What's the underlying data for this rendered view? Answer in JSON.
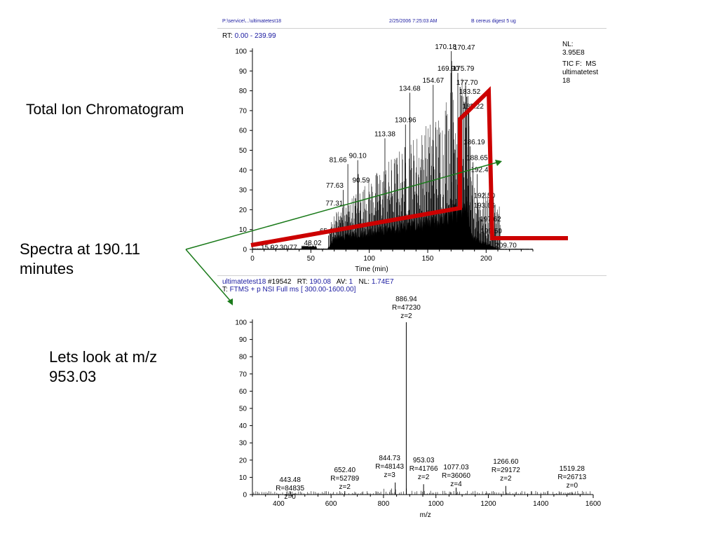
{
  "slide": {
    "label_tic": "Total Ion Chromatogram",
    "label_spectra": "Spectra at 190.11\nminutes",
    "label_lookat": "Lets look at m/z\n953.03"
  },
  "tic_header": {
    "file": "P:\\service\\...\\ultimatetest18",
    "datetime": "2/25/2006 7:25:03 AM",
    "sample": "B cereus digest 5 ug",
    "rt_label": "RT:",
    "rt_range": "0.00 - 239.99",
    "nl_label": "NL:",
    "nl_value": "3.95E8",
    "tic_filter_label": "TIC F:",
    "tic_filter_value": "MS",
    "tic_file_line1": "ultimatetest",
    "tic_file_line2": "18"
  },
  "spec_header": {
    "file": "ultimatetest18",
    "scan": "#19542",
    "rt_label": "RT:",
    "rt_value": "190.08",
    "av_label": "AV:",
    "av_value": "1",
    "nl_label": "NL:",
    "nl_value": "1.74E7",
    "filter_label": "T:",
    "filter_value": "FTMS + p NSI Full ms [ 300.00-1600.00]"
  },
  "colors": {
    "header_blue": "#1a1aa0",
    "red_annotation": "#cc0000",
    "green_arrow": "#1a7a1a",
    "trace": "#000000"
  },
  "chart_data": [
    {
      "type": "area",
      "title": "",
      "xlabel": "Time (min)",
      "ylabel": "",
      "xlim": [
        0,
        240
      ],
      "ylim": [
        0,
        100
      ],
      "xticks": [
        0,
        50,
        100,
        150,
        200
      ],
      "yticks": [
        0,
        10,
        20,
        30,
        40,
        50,
        60,
        70,
        80,
        90,
        100
      ],
      "grid": false,
      "peak_labels": [
        {
          "x": 15.92,
          "y": 2,
          "label": "15.92"
        },
        {
          "x": 30.77,
          "y": 2,
          "label": "30.77"
        },
        {
          "x": 48.02,
          "y": 3.5,
          "label": "48.02"
        },
        {
          "x": 65.04,
          "y": 7,
          "label": "65.04"
        },
        {
          "x": 77.31,
          "y": 21,
          "label": "77.31"
        },
        {
          "x": 77.63,
          "y": 30,
          "label": "77.63"
        },
        {
          "x": 81.66,
          "y": 43,
          "label": "81.66"
        },
        {
          "x": 90.1,
          "y": 45,
          "label": "90.10"
        },
        {
          "x": 90.59,
          "y": 38,
          "label": "90.59"
        },
        {
          "x": 113.38,
          "y": 56,
          "label": "113.38"
        },
        {
          "x": 130.96,
          "y": 63,
          "label": "130.96"
        },
        {
          "x": 134.68,
          "y": 79,
          "label": "134.68"
        },
        {
          "x": 154.67,
          "y": 83,
          "label": "154.67"
        },
        {
          "x": 169.9,
          "y": 89,
          "label": "169.90"
        },
        {
          "x": 170.18,
          "y": 100,
          "label": "170.18"
        },
        {
          "x": 170.47,
          "y": 95,
          "label": "170.47"
        },
        {
          "x": 175.79,
          "y": 89,
          "label": "175.79"
        },
        {
          "x": 177.7,
          "y": 82,
          "label": "177.70"
        },
        {
          "x": 183.52,
          "y": 77,
          "label": "183.52"
        },
        {
          "x": 185.22,
          "y": 70,
          "label": "185.22"
        },
        {
          "x": 186.19,
          "y": 52,
          "label": "186.19"
        },
        {
          "x": 188.65,
          "y": 44,
          "label": "188.65"
        },
        {
          "x": 192.41,
          "y": 38,
          "label": "192.41"
        },
        {
          "x": 192.5,
          "y": 25,
          "label": "192.50"
        },
        {
          "x": 193.66,
          "y": 20,
          "label": "193.66"
        },
        {
          "x": 197.62,
          "y": 13,
          "label": "197.62"
        },
        {
          "x": 199.5,
          "y": 7,
          "label": "199.50"
        },
        {
          "x": 209.7,
          "y": 3,
          "label": "209.70"
        }
      ]
    },
    {
      "type": "bar",
      "title": "",
      "xlabel": "m/z",
      "ylabel": "",
      "xlim": [
        300,
        1600
      ],
      "ylim": [
        0,
        100
      ],
      "xticks": [
        400,
        600,
        800,
        1000,
        1200,
        1400,
        1600
      ],
      "yticks": [
        0,
        10,
        20,
        30,
        40,
        50,
        60,
        70,
        80,
        90,
        100
      ],
      "grid": false,
      "peaks": [
        {
          "mz": 443.48,
          "intensity": 2,
          "label": "443.48",
          "r": "R=84835",
          "z": "z=0"
        },
        {
          "mz": 652.4,
          "intensity": 2,
          "label": "652.40",
          "r": "R=52789",
          "z": "z=2"
        },
        {
          "mz": 844.73,
          "intensity": 7,
          "label": "844.73",
          "r": "R=48143",
          "z": "z=3"
        },
        {
          "mz": 886.94,
          "intensity": 100,
          "label": "886.94",
          "r": "R=47230",
          "z": "z=2"
        },
        {
          "mz": 953.03,
          "intensity": 6,
          "label": "953.03",
          "r": "R=41766",
          "z": "z=2"
        },
        {
          "mz": 1077.03,
          "intensity": 4,
          "label": "1077.03",
          "r": "R=36060",
          "z": "z=4"
        },
        {
          "mz": 1266.6,
          "intensity": 5,
          "label": "1266.60",
          "r": "R=29172",
          "z": "z=2"
        },
        {
          "mz": 1519.28,
          "intensity": 1.5,
          "label": "1519.28",
          "r": "R=26713",
          "z": "z=0"
        }
      ]
    }
  ]
}
